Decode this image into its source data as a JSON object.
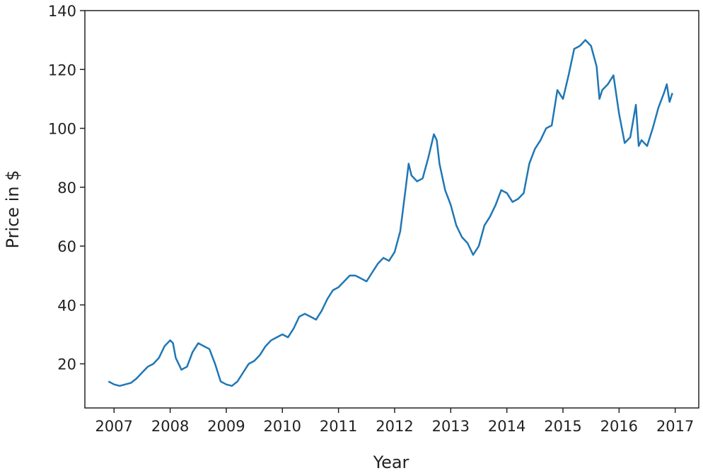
{
  "chart_data": {
    "type": "line",
    "x_label": "Year",
    "y_label": "Price in $",
    "xlim": [
      2006.48,
      2017.42
    ],
    "ylim": [
      5,
      140
    ],
    "xticks": [
      2007,
      2008,
      2009,
      2010,
      2011,
      2012,
      2013,
      2014,
      2015,
      2016,
      2017
    ],
    "yticks": [
      20,
      40,
      60,
      80,
      100,
      120,
      140
    ],
    "grid": false,
    "series": [
      {
        "color": "#1f77b4",
        "x": [
          2006.9,
          2007.0,
          2007.1,
          2007.2,
          2007.3,
          2007.4,
          2007.5,
          2007.6,
          2007.7,
          2007.8,
          2007.9,
          2008.0,
          2008.05,
          2008.1,
          2008.2,
          2008.3,
          2008.4,
          2008.5,
          2008.6,
          2008.7,
          2008.8,
          2008.9,
          2009.0,
          2009.1,
          2009.2,
          2009.3,
          2009.4,
          2009.5,
          2009.6,
          2009.7,
          2009.8,
          2009.9,
          2010.0,
          2010.1,
          2010.2,
          2010.3,
          2010.4,
          2010.5,
          2010.6,
          2010.7,
          2010.8,
          2010.9,
          2011.0,
          2011.1,
          2011.2,
          2011.3,
          2011.4,
          2011.5,
          2011.6,
          2011.7,
          2011.8,
          2011.9,
          2012.0,
          2012.1,
          2012.2,
          2012.25,
          2012.3,
          2012.4,
          2012.5,
          2012.6,
          2012.7,
          2012.75,
          2012.8,
          2012.9,
          2013.0,
          2013.1,
          2013.2,
          2013.3,
          2013.4,
          2013.5,
          2013.6,
          2013.7,
          2013.8,
          2013.9,
          2014.0,
          2014.1,
          2014.2,
          2014.3,
          2014.4,
          2014.5,
          2014.6,
          2014.7,
          2014.8,
          2014.9,
          2015.0,
          2015.1,
          2015.2,
          2015.3,
          2015.4,
          2015.5,
          2015.6,
          2015.65,
          2015.7,
          2015.8,
          2015.9,
          2016.0,
          2016.1,
          2016.2,
          2016.3,
          2016.35,
          2016.4,
          2016.5,
          2016.6,
          2016.7,
          2016.8,
          2016.85,
          2016.9,
          2016.95
        ],
        "values": [
          14,
          13,
          12.5,
          13,
          13.5,
          15,
          17,
          19,
          20,
          22,
          26,
          28,
          27,
          22,
          18,
          19,
          24,
          27,
          26,
          25,
          20,
          14,
          13,
          12.5,
          14,
          17,
          20,
          21,
          23,
          26,
          28,
          29,
          30,
          29,
          32,
          36,
          37,
          36,
          35,
          38,
          42,
          45,
          46,
          48,
          50,
          50,
          49,
          48,
          51,
          54,
          56,
          55,
          58,
          65,
          80,
          88,
          84,
          82,
          83,
          90,
          98,
          96,
          88,
          79,
          74,
          67,
          63,
          61,
          57,
          60,
          67,
          70,
          74,
          79,
          78,
          75,
          76,
          78,
          88,
          93,
          96,
          100,
          101,
          113,
          110,
          118,
          127,
          128,
          130,
          128,
          121,
          110,
          113,
          115,
          118,
          105,
          95,
          97,
          108,
          94,
          96,
          94,
          100,
          107,
          112,
          115,
          109,
          112
        ]
      }
    ]
  }
}
